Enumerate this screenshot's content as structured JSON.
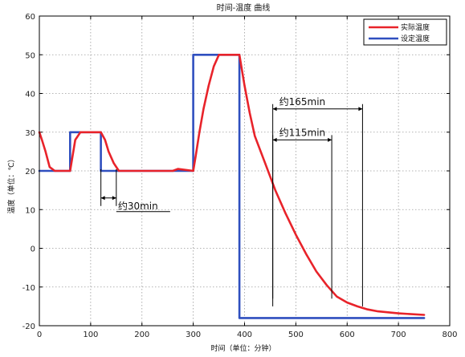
{
  "chart_data": {
    "type": "line",
    "title": "时间-温度 曲线",
    "xlabel": "时间（单位：分钟）",
    "ylabel": "温度（单位：℃）",
    "xlim": [
      0,
      800
    ],
    "ylim": [
      -20,
      60
    ],
    "xticks": [
      0,
      100,
      200,
      300,
      400,
      500,
      600,
      700,
      800
    ],
    "yticks": [
      -20,
      -10,
      0,
      10,
      20,
      30,
      40,
      50,
      60
    ],
    "grid": true,
    "legend_position": "top-right",
    "series": [
      {
        "name": "实际温度",
        "color": "#e8232a",
        "x": [
          0,
          5,
          12,
          20,
          30,
          60,
          65,
          70,
          80,
          90,
          105,
          120,
          128,
          135,
          145,
          155,
          200,
          260,
          270,
          300,
          305,
          312,
          320,
          330,
          340,
          350,
          360,
          380,
          390,
          400,
          410,
          420,
          440,
          460,
          480,
          500,
          520,
          540,
          560,
          580,
          600,
          620,
          640,
          660,
          700,
          750
        ],
        "y": [
          30,
          28,
          25,
          21,
          20,
          20,
          24,
          28,
          30,
          30,
          30,
          30,
          28,
          25,
          22,
          20,
          20,
          20,
          20.5,
          20,
          24,
          30,
          36,
          42,
          47,
          50,
          50,
          50,
          50,
          42,
          35,
          29,
          22,
          15,
          9,
          3.5,
          -1.5,
          -6,
          -9.5,
          -12.5,
          -14,
          -15,
          -15.8,
          -16.3,
          -16.8,
          -17.2
        ]
      },
      {
        "name": "设定温度",
        "color": "#2f4fbf",
        "x": [
          0,
          60,
          60,
          120,
          120,
          300,
          300,
          390,
          390,
          750
        ],
        "y": [
          20,
          20,
          30,
          30,
          20,
          20,
          50,
          50,
          -18,
          -18
        ]
      }
    ],
    "annotations": [
      {
        "label": "约30min",
        "x_start": 120,
        "x_end": 150,
        "y": 13
      },
      {
        "label": "约115min",
        "x_start": 455,
        "x_end": 570,
        "y": 28
      },
      {
        "label": "约165min",
        "x_start": 455,
        "x_end": 630,
        "y": 36
      }
    ]
  }
}
